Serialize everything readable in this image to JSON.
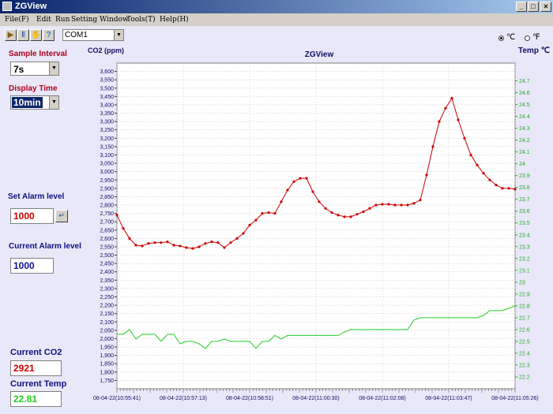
{
  "window": {
    "title": "ZGView"
  },
  "menu": [
    {
      "label": "File(F)"
    },
    {
      "label": "Edit"
    },
    {
      "label": "Run"
    },
    {
      "label": "Setting"
    },
    {
      "label": "Window"
    },
    {
      "label": "Tools(T)"
    },
    {
      "label": "Help(H)"
    }
  ],
  "toolbar": {
    "port_value": "COM1"
  },
  "left_panel": {
    "sample_interval_label": "Sample Interval",
    "sample_interval_value": "7s",
    "display_time_label": "Display Time",
    "display_time_value": "10min",
    "set_alarm_label": "Set Alarm level",
    "set_alarm_value": "1000",
    "current_alarm_label": "Current Alarm level",
    "current_alarm_value": "1000",
    "current_co2_label": "Current CO2",
    "current_co2_value": "2921",
    "current_temp_label": "Current Temp",
    "current_temp_value": "22.81"
  },
  "units": {
    "celsius_label": "℃",
    "fahrenheit_label": "℉",
    "selected": "celsius"
  },
  "colors": {
    "co2": "#cc0000",
    "temp": "#22cc22",
    "grid": "#c8c8c8",
    "title_bar": "#0a246a"
  },
  "chart_data": {
    "type": "line",
    "title": "ZGView",
    "ylabel": "CO2 (ppm)",
    "y2label": "Temp ℃",
    "ylim": [
      1700,
      3650
    ],
    "y2lim": [
      22.1,
      24.85
    ],
    "yticks": [
      1750,
      1800,
      1850,
      1900,
      1950,
      2000,
      2050,
      2100,
      2150,
      2200,
      2250,
      2300,
      2350,
      2400,
      2450,
      2500,
      2550,
      2600,
      2650,
      2700,
      2750,
      2800,
      2850,
      2900,
      2950,
      3000,
      3050,
      3100,
      3150,
      3200,
      3250,
      3300,
      3350,
      3400,
      3450,
      3500,
      3550,
      3600
    ],
    "y2ticks": [
      22.2,
      22.3,
      22.4,
      22.5,
      22.6,
      22.7,
      22.8,
      22.9,
      23,
      23.1,
      23.2,
      23.3,
      23.4,
      23.5,
      23.6,
      23.7,
      23.8,
      23.9,
      24,
      24.1,
      24.2,
      24.3,
      24.4,
      24.5,
      24.6,
      24.7
    ],
    "xtick_labels": [
      "08-04-22(10:55:41)",
      "08-04-22(10:57:13)",
      "08-04-22(10:58:51)",
      "08-04-22(11:00:30)",
      "08-04-22(11:02:08)",
      "08-04-22(11:03:47)",
      "08-04-22(11:05:26)"
    ],
    "series": [
      {
        "name": "CO2",
        "axis": "left",
        "values": [
          2740,
          2660,
          2600,
          2560,
          2555,
          2570,
          2575,
          2575,
          2580,
          2560,
          2555,
          2545,
          2540,
          2550,
          2570,
          2580,
          2575,
          2545,
          2575,
          2600,
          2630,
          2680,
          2710,
          2750,
          2755,
          2750,
          2820,
          2890,
          2940,
          2960,
          2960,
          2880,
          2820,
          2780,
          2755,
          2740,
          2730,
          2730,
          2745,
          2760,
          2780,
          2800,
          2805,
          2805,
          2800,
          2800,
          2800,
          2810,
          2830,
          2980,
          3150,
          3300,
          3380,
          3440,
          3310,
          3200,
          3100,
          3040,
          2990,
          2950,
          2920,
          2900,
          2900,
          2895
        ]
      },
      {
        "name": "Temp",
        "axis": "right",
        "values": [
          22.56,
          22.56,
          22.6,
          22.52,
          22.56,
          22.56,
          22.56,
          22.5,
          22.56,
          22.56,
          22.48,
          22.5,
          22.5,
          22.48,
          22.44,
          22.5,
          22.5,
          22.52,
          22.5,
          22.5,
          22.5,
          22.5,
          22.44,
          22.5,
          22.5,
          22.55,
          22.52,
          22.55,
          22.55,
          22.55,
          22.55,
          22.55,
          22.55,
          22.55,
          22.55,
          22.55,
          22.58,
          22.6,
          22.6,
          22.6,
          22.6,
          22.6,
          22.6,
          22.6,
          22.6,
          22.6,
          22.6,
          22.68,
          22.7,
          22.7,
          22.7,
          22.7,
          22.7,
          22.7,
          22.7,
          22.7,
          22.7,
          22.7,
          22.72,
          22.76,
          22.76,
          22.76,
          22.78,
          22.8
        ]
      }
    ]
  }
}
